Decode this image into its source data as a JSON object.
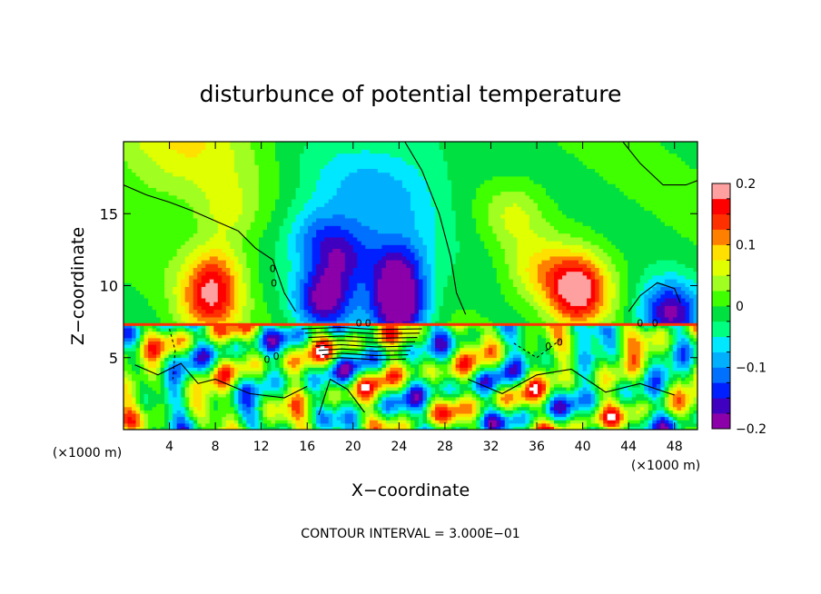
{
  "chart_data": {
    "type": "heatmap",
    "title": "disturbunce of potential temperature",
    "xlabel": "X−coordinate",
    "ylabel": "Z−coordinate",
    "x_unit": "(×1000 m)",
    "y_unit": "(×1000 m)",
    "xlim": [
      0,
      50
    ],
    "ylim": [
      0,
      20
    ],
    "x_ticks": [
      4,
      8,
      12,
      16,
      20,
      24,
      28,
      32,
      36,
      40,
      44,
      48
    ],
    "y_ticks": [
      5,
      10,
      15
    ],
    "footer": "CONTOUR INTERVAL = 3.000E−01",
    "contour_interval": 0.3,
    "contour_label": "0",
    "colorbar": {
      "range": [
        -0.2,
        0.2
      ],
      "labels": [
        {
          "value": 0.2,
          "text": "0.2"
        },
        {
          "value": 0.1,
          "text": "0.1"
        },
        {
          "value": 0,
          "text": "0"
        },
        {
          "value": -0.1,
          "text": "−0.1"
        },
        {
          "value": -0.2,
          "text": "−0.2"
        }
      ],
      "colors": [
        "#8b00a8",
        "#4000c0",
        "#0020ff",
        "#0070ff",
        "#00b0ff",
        "#00e8ff",
        "#00ff80",
        "#00e040",
        "#40ff00",
        "#a0ff20",
        "#e0ff00",
        "#ffe000",
        "#ff8000",
        "#ff3000",
        "#ff0000",
        "#ffa0a0"
      ]
    },
    "upper_layer": {
      "z_range": [
        7.3,
        20
      ],
      "background_value": 0.0,
      "features": [
        {
          "x": 5,
          "z": 20,
          "value": 0.07
        },
        {
          "x": 9,
          "z": 15,
          "value": 0.05
        },
        {
          "x": 7.5,
          "z": 8.8,
          "value": 0.13
        },
        {
          "x": 8,
          "z": 11,
          "value": 0.1
        },
        {
          "x": 16.5,
          "z": 13.5,
          "value": -0.07
        },
        {
          "x": 19,
          "z": 12,
          "value": -0.12
        },
        {
          "x": 17.5,
          "z": 9,
          "value": -0.17
        },
        {
          "x": 21,
          "z": 15.5,
          "value": -0.05
        },
        {
          "x": 23.8,
          "z": 11,
          "value": -0.15
        },
        {
          "x": 24,
          "z": 8.3,
          "value": -0.2
        },
        {
          "x": 24,
          "z": 17.5,
          "value": -0.04
        },
        {
          "x": 34,
          "z": 15,
          "value": 0.05
        },
        {
          "x": 36,
          "z": 11,
          "value": 0.07
        },
        {
          "x": 39.5,
          "z": 9,
          "value": 0.13
        },
        {
          "x": 39.5,
          "z": 10.5,
          "value": 0.1
        },
        {
          "x": 47,
          "z": 8.5,
          "value": -0.08
        },
        {
          "x": 48,
          "z": 7.8,
          "value": -0.12
        }
      ]
    },
    "lower_layer": {
      "z_range": [
        0,
        7.3
      ],
      "description_value_range": [
        -0.2,
        0.2
      ]
    }
  }
}
